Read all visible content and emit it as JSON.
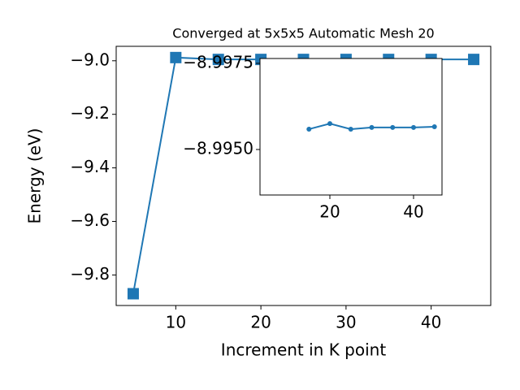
{
  "chart_data": [
    {
      "type": "line",
      "title": "Converged at 5x5x5 Automatic Mesh 20",
      "xlabel": "Increment in K point",
      "ylabel": "Energy (eV)",
      "x": [
        5,
        10,
        15,
        20,
        25,
        30,
        35,
        40,
        45
      ],
      "series": [
        {
          "color": "#1f77b4",
          "marker": "square",
          "values": [
            -9.87,
            -8.988,
            -8.995,
            -8.995,
            -8.995,
            -8.995,
            -8.995,
            -8.995,
            -8.995
          ]
        }
      ],
      "xlim": [
        3,
        47
      ],
      "ylim": [
        -9.914,
        -8.946
      ],
      "xticks": [
        10,
        20,
        30,
        40
      ],
      "yticks": [
        {
          "value": -9.8,
          "label": "−9.8"
        },
        {
          "value": -9.6,
          "label": "−9.6"
        },
        {
          "value": -9.4,
          "label": "−9.4"
        },
        {
          "value": -9.2,
          "label": "−9.2"
        },
        {
          "value": -9.0,
          "label": "−9.0"
        }
      ]
    },
    {
      "type": "line",
      "x": [
        15,
        20,
        25,
        30,
        35,
        40,
        45
      ],
      "series": [
        {
          "color": "#1f77b4",
          "marker": "circle",
          "values": [
            -8.99559,
            -8.99575,
            -8.99559,
            -8.99564,
            -8.99564,
            -8.99564,
            -8.99566
          ]
        }
      ],
      "xlim": [
        3.3,
        46.8
      ],
      "ylim": [
        -8.99368,
        -8.99764
      ],
      "xticks": [
        20,
        40
      ],
      "yticks": [
        {
          "value": -8.9975,
          "label": "−8.9975"
        },
        {
          "value": -8.995,
          "label": "−8.9950"
        }
      ]
    }
  ]
}
